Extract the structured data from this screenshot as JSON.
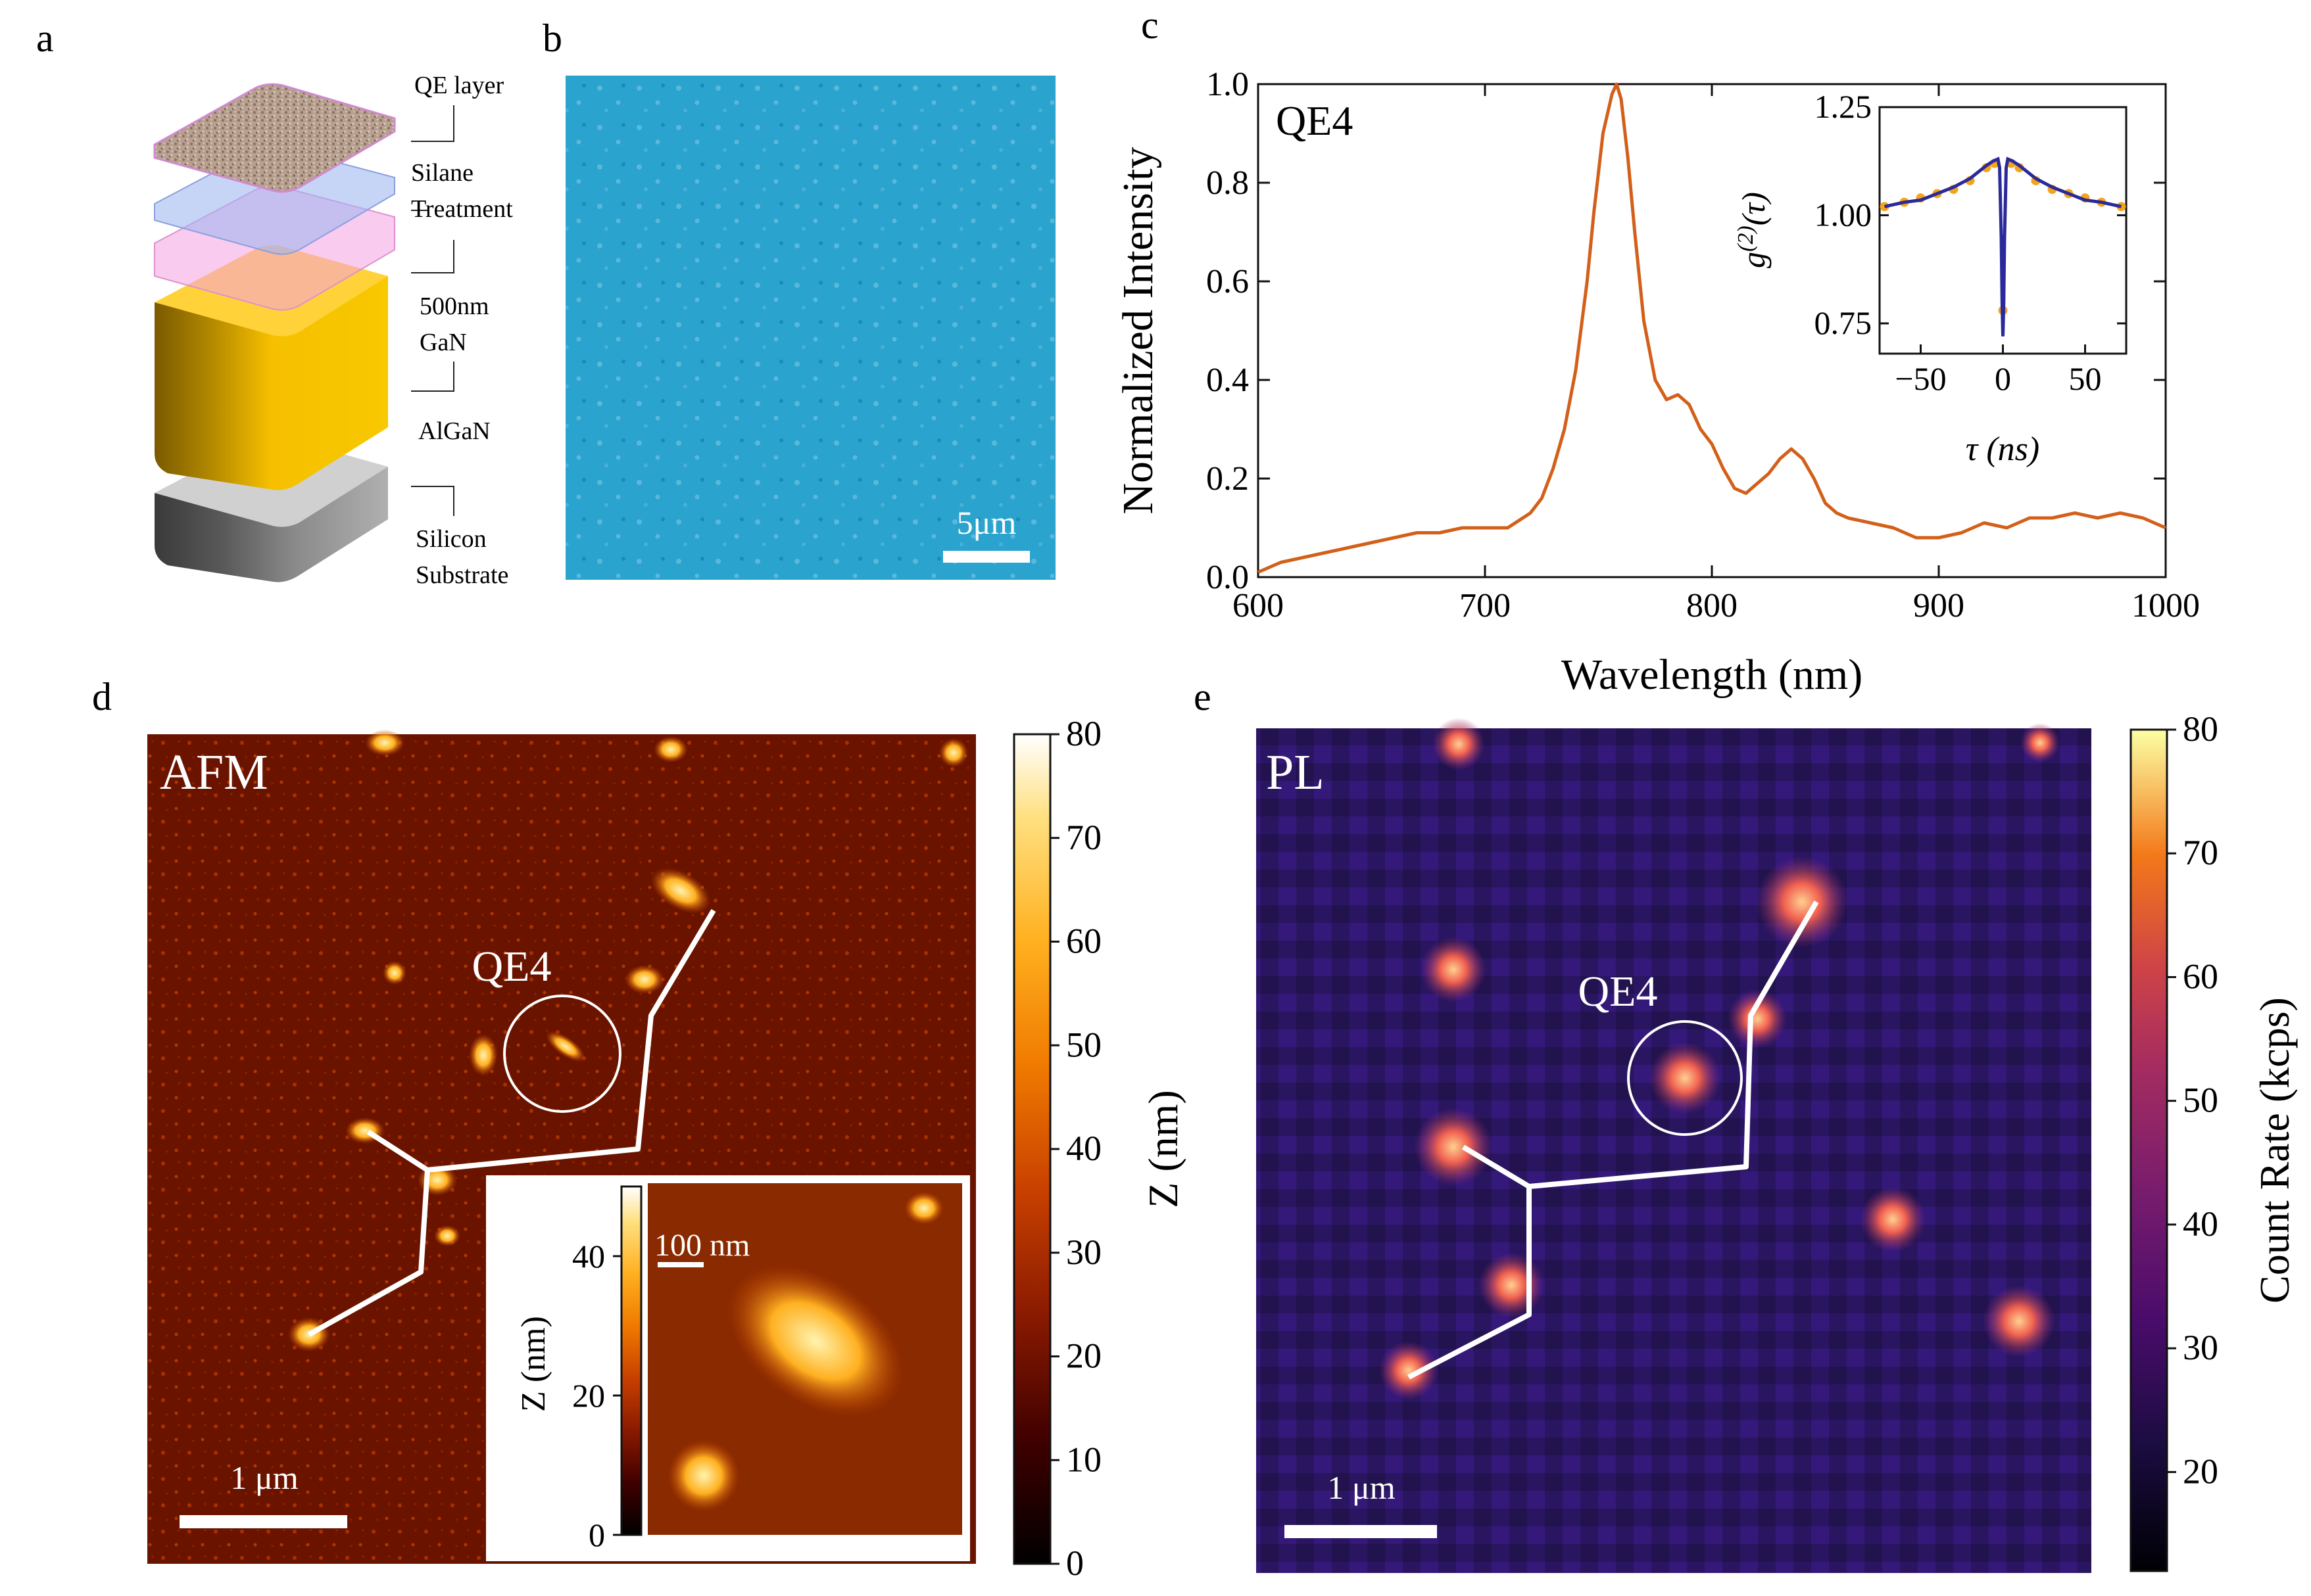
{
  "panels": {
    "a": "a",
    "b": "b",
    "c": "c",
    "d": "d",
    "e": "e"
  },
  "panel_a": {
    "labels": [
      "QE layer",
      "Silane\nTreatment",
      "500nm\nGaN",
      "AlGaN",
      "Silicon\nSubstrate"
    ]
  },
  "panel_b": {
    "scalebar": "5μm"
  },
  "panel_c": {
    "tag": "QE4",
    "inset_tau_label": "τ (ns)",
    "inset_g2_label": "g(2)(τ)"
  },
  "panel_d": {
    "tag": "AFM",
    "qe_label": "QE4",
    "scalebar": "1 μm",
    "inset_scalebar": "100 nm",
    "colorbar_label": "Z (nm)",
    "colorbar_ticks": [
      "0",
      "10",
      "20",
      "30",
      "40",
      "50",
      "60",
      "70",
      "80"
    ],
    "inset_colorbar_label": "Z (nm)",
    "inset_colorbar_ticks": [
      "0",
      "20",
      "40"
    ]
  },
  "panel_e": {
    "tag": "PL",
    "qe_label": "QE4",
    "scalebar": "1 μm",
    "colorbar_label": "Count Rate (kcps)",
    "colorbar_ticks": [
      "20",
      "30",
      "40",
      "50",
      "60",
      "70",
      "80"
    ]
  },
  "chart_data": [
    {
      "type": "line",
      "title": "",
      "xlabel": "Wavelength (nm)",
      "ylabel": "Normalized  Intensity",
      "xlim": [
        600,
        1000
      ],
      "ylim": [
        0,
        1.0
      ],
      "xticks": [
        600,
        700,
        800,
        900,
        1000
      ],
      "yticks": [
        0.0,
        0.2,
        0.4,
        0.6,
        0.8,
        1.0
      ],
      "series": [
        {
          "name": "QE4",
          "color": "#d2601a",
          "x": [
            600,
            610,
            620,
            630,
            640,
            650,
            660,
            670,
            680,
            690,
            700,
            710,
            720,
            725,
            730,
            735,
            740,
            745,
            748,
            752,
            756,
            758,
            760,
            763,
            766,
            770,
            775,
            780,
            785,
            790,
            795,
            800,
            805,
            810,
            815,
            820,
            825,
            830,
            835,
            840,
            845,
            850,
            855,
            860,
            870,
            880,
            890,
            900,
            910,
            920,
            930,
            940,
            950,
            960,
            970,
            980,
            990,
            1000
          ],
          "values": [
            0.01,
            0.03,
            0.04,
            0.05,
            0.06,
            0.07,
            0.08,
            0.09,
            0.09,
            0.1,
            0.1,
            0.1,
            0.13,
            0.16,
            0.22,
            0.3,
            0.42,
            0.6,
            0.74,
            0.9,
            0.98,
            1.0,
            0.97,
            0.85,
            0.7,
            0.52,
            0.4,
            0.36,
            0.37,
            0.35,
            0.3,
            0.27,
            0.22,
            0.18,
            0.17,
            0.19,
            0.21,
            0.24,
            0.26,
            0.24,
            0.2,
            0.15,
            0.13,
            0.12,
            0.11,
            0.1,
            0.08,
            0.08,
            0.09,
            0.11,
            0.1,
            0.12,
            0.12,
            0.13,
            0.12,
            0.13,
            0.12,
            0.1
          ]
        }
      ]
    },
    {
      "type": "scatter",
      "title": "",
      "xlabel": "τ (ns)",
      "ylabel": "g(2)(τ)",
      "xlim": [
        -75,
        75
      ],
      "ylim": [
        0.68,
        1.25
      ],
      "xticks": [
        -50,
        0,
        50
      ],
      "yticks": [
        0.75,
        1.0,
        1.25
      ],
      "series": [
        {
          "name": "fit",
          "type": "line",
          "color": "#2a2a9a",
          "x": [
            -72,
            -60,
            -50,
            -40,
            -30,
            -20,
            -15,
            -10,
            -6,
            -3,
            -2,
            -1,
            -0.5,
            0,
            0.5,
            1,
            2,
            3,
            6,
            10,
            15,
            20,
            30,
            40,
            50,
            60,
            72
          ],
          "values": [
            1.02,
            1.03,
            1.035,
            1.05,
            1.065,
            1.085,
            1.1,
            1.115,
            1.125,
            1.13,
            1.11,
            0.95,
            0.8,
            0.72,
            0.8,
            0.95,
            1.11,
            1.13,
            1.125,
            1.115,
            1.1,
            1.085,
            1.065,
            1.05,
            1.035,
            1.03,
            1.02
          ]
        },
        {
          "name": "data",
          "type": "scatter",
          "color": "#f4a41c",
          "x": [
            -72,
            -60,
            -50,
            -40,
            -30,
            -20,
            -10,
            -5,
            0,
            5,
            10,
            20,
            30,
            40,
            50,
            60,
            72
          ],
          "values": [
            1.02,
            1.03,
            1.04,
            1.05,
            1.06,
            1.08,
            1.11,
            1.12,
            0.78,
            1.12,
            1.11,
            1.08,
            1.06,
            1.05,
            1.04,
            1.03,
            1.02
          ]
        }
      ]
    }
  ]
}
